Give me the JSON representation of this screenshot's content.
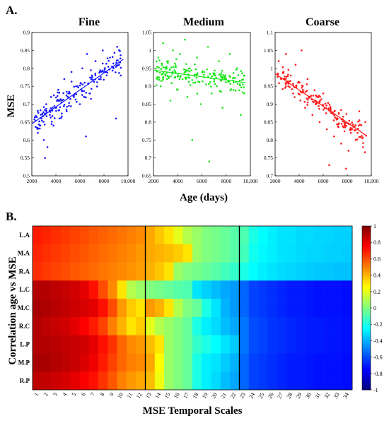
{
  "figure": {
    "panel_a_label": "A.",
    "panel_b_label": "B."
  },
  "chart_data": [
    {
      "type": "scatter",
      "title": "Fine",
      "ylabel": "MSE",
      "xlabel": "",
      "xlim": [
        2000,
        10000
      ],
      "ylim": [
        0.5,
        0.9
      ],
      "xticks": [
        "2000",
        "4000",
        "6000",
        "8000",
        "10,000"
      ],
      "yticks": [
        "0.5",
        "0.55",
        "0.6",
        "0.65",
        "0.7",
        "0.75",
        "0.8",
        "0.85",
        "0.9"
      ],
      "color": "#1a1aff",
      "trend": [
        [
          2000,
          0.645
        ],
        [
          9600,
          0.825
        ]
      ],
      "spread": 0.055,
      "points": [
        [
          2500,
          0.62
        ],
        [
          2800,
          0.66
        ],
        [
          3000,
          0.6
        ],
        [
          3200,
          0.7
        ],
        [
          3300,
          0.58
        ],
        [
          3500,
          0.67
        ],
        [
          3600,
          0.72
        ],
        [
          3800,
          0.64
        ],
        [
          4000,
          0.69
        ],
        [
          4200,
          0.74
        ],
        [
          4300,
          0.66
        ],
        [
          4500,
          0.71
        ],
        [
          4700,
          0.77
        ],
        [
          4900,
          0.68
        ],
        [
          5100,
          0.73
        ],
        [
          5300,
          0.79
        ],
        [
          5500,
          0.72
        ],
        [
          5800,
          0.75
        ],
        [
          6000,
          0.7
        ],
        [
          6200,
          0.8
        ],
        [
          6400,
          0.76
        ],
        [
          6600,
          0.84
        ],
        [
          6800,
          0.73
        ],
        [
          7000,
          0.78
        ],
        [
          7300,
          0.82
        ],
        [
          7600,
          0.77
        ],
        [
          7900,
          0.85
        ],
        [
          8200,
          0.79
        ],
        [
          8500,
          0.83
        ],
        [
          8800,
          0.8
        ],
        [
          9100,
          0.86
        ],
        [
          9400,
          0.78
        ],
        [
          3100,
          0.55
        ],
        [
          6500,
          0.61
        ],
        [
          9000,
          0.66
        ]
      ]
    },
    {
      "type": "scatter",
      "title": "Medium",
      "xlabel": "Age (days)",
      "ylabel": "",
      "xlim": [
        2000,
        10000
      ],
      "ylim": [
        0.65,
        1.05
      ],
      "xticks": [
        "2000",
        "4000",
        "6000",
        "8000",
        "10,000"
      ],
      "yticks": [
        "0.65",
        "0.7",
        "0.75",
        "0.8",
        "0.85",
        "0.9",
        "0.95",
        "1",
        "1.05"
      ],
      "color": "#19e619",
      "trend": [
        [
          2000,
          0.945
        ],
        [
          9600,
          0.91
        ]
      ],
      "spread": 0.055,
      "points": [
        [
          2400,
          0.98
        ],
        [
          2600,
          0.9
        ],
        [
          2800,
          1.02
        ],
        [
          3000,
          0.93
        ],
        [
          3200,
          0.97
        ],
        [
          3400,
          0.86
        ],
        [
          3600,
          1.0
        ],
        [
          3800,
          0.94
        ],
        [
          4000,
          0.89
        ],
        [
          4200,
          0.99
        ],
        [
          4400,
          0.92
        ],
        [
          4600,
          1.03
        ],
        [
          4800,
          0.87
        ],
        [
          5000,
          0.95
        ],
        [
          5300,
          0.91
        ],
        [
          5600,
          0.98
        ],
        [
          5900,
          0.85
        ],
        [
          6200,
          0.94
        ],
        [
          6500,
          1.01
        ],
        [
          6800,
          0.88
        ],
        [
          7100,
          0.93
        ],
        [
          7400,
          0.97
        ],
        [
          7700,
          0.84
        ],
        [
          8000,
          0.92
        ],
        [
          8300,
          0.99
        ],
        [
          8600,
          0.89
        ],
        [
          8900,
          0.95
        ],
        [
          9200,
          0.82
        ],
        [
          9500,
          0.93
        ],
        [
          5200,
          0.75
        ],
        [
          6600,
          0.69
        ]
      ]
    },
    {
      "type": "scatter",
      "title": "Coarse",
      "xlabel": "",
      "ylabel": "",
      "xlim": [
        2000,
        10000
      ],
      "ylim": [
        0.7,
        1.1
      ],
      "xticks": [
        "2000",
        "4000",
        "6000",
        "8000",
        "10,000"
      ],
      "yticks": [
        "0.7",
        "0.75",
        "0.8",
        "0.85",
        "0.9",
        "0.95",
        "1",
        "1.05",
        "1.1"
      ],
      "color": "#ff1a1a",
      "trend": [
        [
          2000,
          0.985
        ],
        [
          9600,
          0.812
        ]
      ],
      "spread": 0.055,
      "points": [
        [
          2300,
          1.02
        ],
        [
          2500,
          0.97
        ],
        [
          2700,
          0.99
        ],
        [
          2900,
          1.04
        ],
        [
          3100,
          0.95
        ],
        [
          3300,
          0.98
        ],
        [
          3500,
          0.93
        ],
        [
          3700,
          1.01
        ],
        [
          3900,
          0.96
        ],
        [
          4100,
          0.91
        ],
        [
          4300,
          0.94
        ],
        [
          4500,
          0.89
        ],
        [
          4700,
          0.97
        ],
        [
          4900,
          0.92
        ],
        [
          5100,
          0.87
        ],
        [
          5400,
          0.9
        ],
        [
          5700,
          0.85
        ],
        [
          6000,
          0.93
        ],
        [
          6300,
          0.83
        ],
        [
          6600,
          0.88
        ],
        [
          6900,
          0.81
        ],
        [
          7200,
          0.86
        ],
        [
          7500,
          0.79
        ],
        [
          7800,
          0.84
        ],
        [
          8100,
          0.77
        ],
        [
          8400,
          0.83
        ],
        [
          8700,
          0.8
        ],
        [
          9000,
          0.88
        ],
        [
          9300,
          0.78
        ],
        [
          9500,
          0.85
        ],
        [
          6500,
          0.73
        ],
        [
          7900,
          0.72
        ],
        [
          4200,
          1.05
        ]
      ]
    },
    {
      "type": "heatmap",
      "ylabel": "Correlation age vs MSE",
      "xlabel": "MSE Temporal Scales",
      "rows": [
        "L.A",
        "M.A",
        "R.A",
        "L.C",
        "M.C",
        "R.C",
        "L.P",
        "M.P",
        "R.P"
      ],
      "columns": [
        "1",
        "2",
        "3",
        "4",
        "5",
        "6",
        "7",
        "8",
        "9",
        "10",
        "11",
        "12",
        "13",
        "14",
        "15",
        "16",
        "17",
        "18",
        "19",
        "20",
        "21",
        "22",
        "23",
        "24",
        "25",
        "26",
        "27",
        "28",
        "29",
        "30",
        "31",
        "32",
        "33",
        "34"
      ],
      "colorbar": {
        "min": -1,
        "max": 1,
        "ticks": [
          "1",
          "0.8",
          "0.6",
          "0.4",
          "0.2",
          "0",
          "-0.2",
          "-0.4",
          "-0.6",
          "-0.8",
          "-1"
        ]
      },
      "dividers_after_column": [
        12,
        22
      ],
      "values": [
        [
          0.7,
          0.68,
          0.66,
          0.64,
          0.62,
          0.6,
          0.58,
          0.56,
          0.54,
          0.52,
          0.5,
          0.48,
          0.42,
          0.36,
          0.3,
          0.2,
          0.1,
          0.05,
          0.0,
          -0.02,
          -0.05,
          -0.08,
          -0.1,
          -0.2,
          -0.25,
          -0.28,
          -0.3,
          -0.3,
          -0.32,
          -0.32,
          -0.33,
          -0.33,
          -0.34,
          -0.34
        ],
        [
          0.68,
          0.66,
          0.64,
          0.62,
          0.6,
          0.58,
          0.56,
          0.54,
          0.52,
          0.5,
          0.48,
          0.45,
          0.42,
          0.4,
          0.38,
          0.35,
          0.3,
          0.05,
          0.0,
          -0.02,
          -0.05,
          -0.08,
          -0.12,
          -0.22,
          -0.26,
          -0.28,
          -0.3,
          -0.31,
          -0.32,
          -0.33,
          -0.33,
          -0.34,
          -0.34,
          -0.35
        ],
        [
          0.66,
          0.64,
          0.62,
          0.6,
          0.58,
          0.56,
          0.54,
          0.52,
          0.5,
          0.48,
          0.46,
          0.44,
          0.4,
          0.36,
          0.3,
          0.05,
          0.0,
          -0.02,
          -0.05,
          -0.08,
          -0.12,
          -0.15,
          -0.2,
          -0.25,
          -0.28,
          -0.3,
          -0.32,
          -0.33,
          -0.34,
          -0.35,
          -0.36,
          -0.36,
          -0.37,
          -0.37
        ],
        [
          0.9,
          0.9,
          0.88,
          0.86,
          0.84,
          0.8,
          0.72,
          0.6,
          0.48,
          0.3,
          0.1,
          0.05,
          0.0,
          -0.02,
          -0.05,
          -0.08,
          -0.1,
          -0.3,
          -0.34,
          -0.38,
          -0.42,
          -0.45,
          -0.55,
          -0.62,
          -0.64,
          -0.66,
          -0.68,
          -0.7,
          -0.7,
          -0.71,
          -0.72,
          -0.72,
          -0.72,
          -0.73
        ],
        [
          0.92,
          0.91,
          0.89,
          0.87,
          0.85,
          0.83,
          0.8,
          0.72,
          0.6,
          0.45,
          0.35,
          0.3,
          0.45,
          0.4,
          0.3,
          0.1,
          0.0,
          -0.05,
          -0.2,
          -0.3,
          -0.4,
          -0.45,
          -0.55,
          -0.62,
          -0.64,
          -0.66,
          -0.68,
          -0.7,
          -0.7,
          -0.71,
          -0.72,
          -0.72,
          -0.72,
          -0.73
        ],
        [
          0.9,
          0.88,
          0.86,
          0.84,
          0.8,
          0.75,
          0.7,
          0.62,
          0.5,
          0.4,
          0.3,
          0.35,
          0.2,
          0.1,
          0.05,
          0.0,
          -0.05,
          -0.2,
          -0.28,
          -0.32,
          -0.38,
          -0.42,
          -0.52,
          -0.6,
          -0.62,
          -0.65,
          -0.66,
          -0.68,
          -0.69,
          -0.7,
          -0.7,
          -0.71,
          -0.71,
          -0.72
        ],
        [
          0.9,
          0.9,
          0.89,
          0.87,
          0.86,
          0.84,
          0.8,
          0.72,
          0.65,
          0.55,
          0.48,
          0.45,
          0.38,
          0.3,
          0.05,
          0.0,
          -0.05,
          -0.15,
          -0.2,
          -0.25,
          -0.3,
          -0.35,
          -0.52,
          -0.6,
          -0.62,
          -0.65,
          -0.66,
          -0.68,
          -0.69,
          -0.7,
          -0.7,
          -0.71,
          -0.71,
          -0.72
        ],
        [
          0.92,
          0.92,
          0.9,
          0.88,
          0.86,
          0.82,
          0.78,
          0.7,
          0.62,
          0.55,
          0.5,
          0.48,
          0.42,
          0.25,
          0.05,
          0.0,
          -0.05,
          -0.2,
          -0.28,
          -0.3,
          -0.35,
          -0.4,
          -0.55,
          -0.62,
          -0.64,
          -0.66,
          -0.68,
          -0.7,
          -0.7,
          -0.71,
          -0.72,
          -0.72,
          -0.72,
          -0.73
        ],
        [
          0.88,
          0.87,
          0.85,
          0.83,
          0.8,
          0.76,
          0.72,
          0.65,
          0.58,
          0.5,
          0.45,
          0.42,
          0.38,
          0.22,
          0.05,
          0.0,
          -0.05,
          -0.2,
          -0.28,
          -0.32,
          -0.38,
          -0.42,
          -0.55,
          -0.62,
          -0.64,
          -0.66,
          -0.68,
          -0.7,
          -0.7,
          -0.71,
          -0.72,
          -0.72,
          -0.72,
          -0.73
        ]
      ]
    }
  ]
}
